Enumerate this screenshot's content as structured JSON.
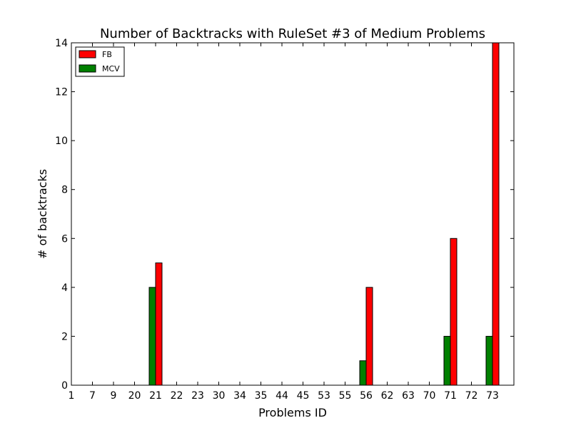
{
  "chart_data": {
    "type": "bar",
    "title": "Number of Backtracks with RuleSet #3 of Medium Problems",
    "xlabel": "Problems ID",
    "ylabel": "# of backtracks",
    "ylim": [
      0,
      14
    ],
    "yticks": [
      "0",
      "2",
      "4",
      "6",
      "8",
      "10",
      "12",
      "14"
    ],
    "categories": [
      "1",
      "7",
      "9",
      "20",
      "21",
      "22",
      "23",
      "30",
      "34",
      "35",
      "44",
      "45",
      "53",
      "55",
      "56",
      "62",
      "63",
      "70",
      "71",
      "72",
      "73"
    ],
    "highlighted_categories": [
      "1",
      "7"
    ],
    "highlight_color": "#ff0000",
    "legend_position": "top-left",
    "series": [
      {
        "name": "FB",
        "color": "#ff0000",
        "values": [
          0,
          0,
          0,
          0,
          5,
          0,
          0,
          0,
          0,
          0,
          0,
          0,
          0,
          0,
          4,
          0,
          0,
          0,
          6,
          0,
          14
        ]
      },
      {
        "name": "MCV",
        "color": "#008000",
        "values": [
          0,
          0,
          0,
          0,
          4,
          0,
          0,
          0,
          0,
          0,
          0,
          0,
          0,
          0,
          1,
          0,
          0,
          0,
          2,
          0,
          2
        ]
      }
    ]
  }
}
